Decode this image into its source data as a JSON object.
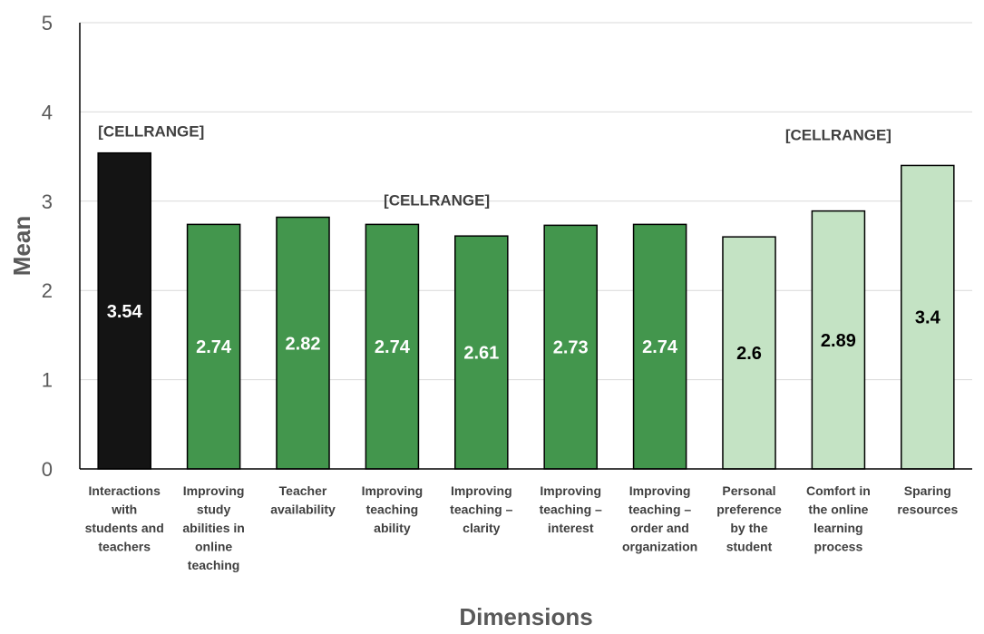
{
  "chart_data": {
    "type": "bar",
    "categories": [
      [
        "Interactions",
        "with",
        "students and",
        "teachers"
      ],
      [
        "Improving",
        "study",
        "abilities in",
        "online",
        "teaching"
      ],
      [
        "Teacher",
        "availability"
      ],
      [
        "Improving",
        "teaching",
        "ability"
      ],
      [
        "Improving",
        "teaching –",
        "clarity"
      ],
      [
        "Improving",
        "teaching –",
        "interest"
      ],
      [
        "Improving",
        "teaching –",
        "order and",
        "organization"
      ],
      [
        "Personal",
        "preference",
        "by the",
        "student"
      ],
      [
        "Comfort in",
        "the online",
        "learning",
        "process"
      ],
      [
        "Sparing",
        "resources"
      ]
    ],
    "values": [
      3.54,
      2.74,
      2.82,
      2.74,
      2.61,
      2.73,
      2.74,
      2.6,
      2.89,
      3.4
    ],
    "value_labels": [
      "3.54",
      "2.74",
      "2.82",
      "2.74",
      "2.61",
      "2.73",
      "2.74",
      "2.6",
      "2.89",
      "3.4"
    ],
    "bar_colors": [
      "#141414",
      "#43964d",
      "#43964d",
      "#43964d",
      "#43964d",
      "#43964d",
      "#43964d",
      "#c4e3c4",
      "#c4e3c4",
      "#c4e3c4"
    ],
    "label_colors": [
      "#ffffff",
      "#ffffff",
      "#ffffff",
      "#ffffff",
      "#ffffff",
      "#ffffff",
      "#ffffff",
      "#000000",
      "#000000",
      "#000000"
    ],
    "group_labels": [
      {
        "text": "[CELLRANGE]",
        "start": 0,
        "end": 0
      },
      {
        "text": "[CELLRANGE]",
        "start": 1,
        "end": 6
      },
      {
        "text": "[CELLRANGE]",
        "start": 7,
        "end": 9
      }
    ],
    "xlabel": "Dimensions",
    "ylabel": "Mean",
    "ylim": [
      0,
      5
    ],
    "yticks": [
      0,
      1,
      2,
      3,
      4,
      5
    ],
    "grid": true,
    "gridline_color": "#d9d9d9"
  }
}
